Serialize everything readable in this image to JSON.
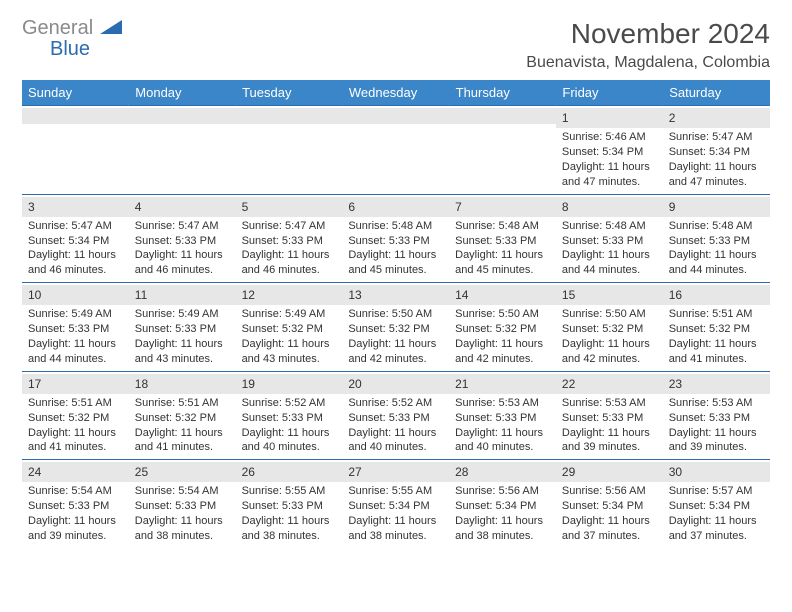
{
  "logo": {
    "gray": "General",
    "blue": "Blue"
  },
  "title": "November 2024",
  "location": "Buenavista, Magdalena, Colombia",
  "headers": [
    "Sunday",
    "Monday",
    "Tuesday",
    "Wednesday",
    "Thursday",
    "Friday",
    "Saturday"
  ],
  "colors": {
    "header_bg": "#3a86c8",
    "header_fg": "#ffffff",
    "border": "#2b6bb0",
    "daynum_bg": "#e7e7e7",
    "text": "#333333"
  },
  "weeks": [
    [
      {
        "day": "",
        "sunrise": "",
        "sunset": "",
        "daylight": ""
      },
      {
        "day": "",
        "sunrise": "",
        "sunset": "",
        "daylight": ""
      },
      {
        "day": "",
        "sunrise": "",
        "sunset": "",
        "daylight": ""
      },
      {
        "day": "",
        "sunrise": "",
        "sunset": "",
        "daylight": ""
      },
      {
        "day": "",
        "sunrise": "",
        "sunset": "",
        "daylight": ""
      },
      {
        "day": "1",
        "sunrise": "Sunrise: 5:46 AM",
        "sunset": "Sunset: 5:34 PM",
        "daylight": "Daylight: 11 hours and 47 minutes."
      },
      {
        "day": "2",
        "sunrise": "Sunrise: 5:47 AM",
        "sunset": "Sunset: 5:34 PM",
        "daylight": "Daylight: 11 hours and 47 minutes."
      }
    ],
    [
      {
        "day": "3",
        "sunrise": "Sunrise: 5:47 AM",
        "sunset": "Sunset: 5:34 PM",
        "daylight": "Daylight: 11 hours and 46 minutes."
      },
      {
        "day": "4",
        "sunrise": "Sunrise: 5:47 AM",
        "sunset": "Sunset: 5:33 PM",
        "daylight": "Daylight: 11 hours and 46 minutes."
      },
      {
        "day": "5",
        "sunrise": "Sunrise: 5:47 AM",
        "sunset": "Sunset: 5:33 PM",
        "daylight": "Daylight: 11 hours and 46 minutes."
      },
      {
        "day": "6",
        "sunrise": "Sunrise: 5:48 AM",
        "sunset": "Sunset: 5:33 PM",
        "daylight": "Daylight: 11 hours and 45 minutes."
      },
      {
        "day": "7",
        "sunrise": "Sunrise: 5:48 AM",
        "sunset": "Sunset: 5:33 PM",
        "daylight": "Daylight: 11 hours and 45 minutes."
      },
      {
        "day": "8",
        "sunrise": "Sunrise: 5:48 AM",
        "sunset": "Sunset: 5:33 PM",
        "daylight": "Daylight: 11 hours and 44 minutes."
      },
      {
        "day": "9",
        "sunrise": "Sunrise: 5:48 AM",
        "sunset": "Sunset: 5:33 PM",
        "daylight": "Daylight: 11 hours and 44 minutes."
      }
    ],
    [
      {
        "day": "10",
        "sunrise": "Sunrise: 5:49 AM",
        "sunset": "Sunset: 5:33 PM",
        "daylight": "Daylight: 11 hours and 44 minutes."
      },
      {
        "day": "11",
        "sunrise": "Sunrise: 5:49 AM",
        "sunset": "Sunset: 5:33 PM",
        "daylight": "Daylight: 11 hours and 43 minutes."
      },
      {
        "day": "12",
        "sunrise": "Sunrise: 5:49 AM",
        "sunset": "Sunset: 5:32 PM",
        "daylight": "Daylight: 11 hours and 43 minutes."
      },
      {
        "day": "13",
        "sunrise": "Sunrise: 5:50 AM",
        "sunset": "Sunset: 5:32 PM",
        "daylight": "Daylight: 11 hours and 42 minutes."
      },
      {
        "day": "14",
        "sunrise": "Sunrise: 5:50 AM",
        "sunset": "Sunset: 5:32 PM",
        "daylight": "Daylight: 11 hours and 42 minutes."
      },
      {
        "day": "15",
        "sunrise": "Sunrise: 5:50 AM",
        "sunset": "Sunset: 5:32 PM",
        "daylight": "Daylight: 11 hours and 42 minutes."
      },
      {
        "day": "16",
        "sunrise": "Sunrise: 5:51 AM",
        "sunset": "Sunset: 5:32 PM",
        "daylight": "Daylight: 11 hours and 41 minutes."
      }
    ],
    [
      {
        "day": "17",
        "sunrise": "Sunrise: 5:51 AM",
        "sunset": "Sunset: 5:32 PM",
        "daylight": "Daylight: 11 hours and 41 minutes."
      },
      {
        "day": "18",
        "sunrise": "Sunrise: 5:51 AM",
        "sunset": "Sunset: 5:32 PM",
        "daylight": "Daylight: 11 hours and 41 minutes."
      },
      {
        "day": "19",
        "sunrise": "Sunrise: 5:52 AM",
        "sunset": "Sunset: 5:33 PM",
        "daylight": "Daylight: 11 hours and 40 minutes."
      },
      {
        "day": "20",
        "sunrise": "Sunrise: 5:52 AM",
        "sunset": "Sunset: 5:33 PM",
        "daylight": "Daylight: 11 hours and 40 minutes."
      },
      {
        "day": "21",
        "sunrise": "Sunrise: 5:53 AM",
        "sunset": "Sunset: 5:33 PM",
        "daylight": "Daylight: 11 hours and 40 minutes."
      },
      {
        "day": "22",
        "sunrise": "Sunrise: 5:53 AM",
        "sunset": "Sunset: 5:33 PM",
        "daylight": "Daylight: 11 hours and 39 minutes."
      },
      {
        "day": "23",
        "sunrise": "Sunrise: 5:53 AM",
        "sunset": "Sunset: 5:33 PM",
        "daylight": "Daylight: 11 hours and 39 minutes."
      }
    ],
    [
      {
        "day": "24",
        "sunrise": "Sunrise: 5:54 AM",
        "sunset": "Sunset: 5:33 PM",
        "daylight": "Daylight: 11 hours and 39 minutes."
      },
      {
        "day": "25",
        "sunrise": "Sunrise: 5:54 AM",
        "sunset": "Sunset: 5:33 PM",
        "daylight": "Daylight: 11 hours and 38 minutes."
      },
      {
        "day": "26",
        "sunrise": "Sunrise: 5:55 AM",
        "sunset": "Sunset: 5:33 PM",
        "daylight": "Daylight: 11 hours and 38 minutes."
      },
      {
        "day": "27",
        "sunrise": "Sunrise: 5:55 AM",
        "sunset": "Sunset: 5:34 PM",
        "daylight": "Daylight: 11 hours and 38 minutes."
      },
      {
        "day": "28",
        "sunrise": "Sunrise: 5:56 AM",
        "sunset": "Sunset: 5:34 PM",
        "daylight": "Daylight: 11 hours and 38 minutes."
      },
      {
        "day": "29",
        "sunrise": "Sunrise: 5:56 AM",
        "sunset": "Sunset: 5:34 PM",
        "daylight": "Daylight: 11 hours and 37 minutes."
      },
      {
        "day": "30",
        "sunrise": "Sunrise: 5:57 AM",
        "sunset": "Sunset: 5:34 PM",
        "daylight": "Daylight: 11 hours and 37 minutes."
      }
    ]
  ]
}
